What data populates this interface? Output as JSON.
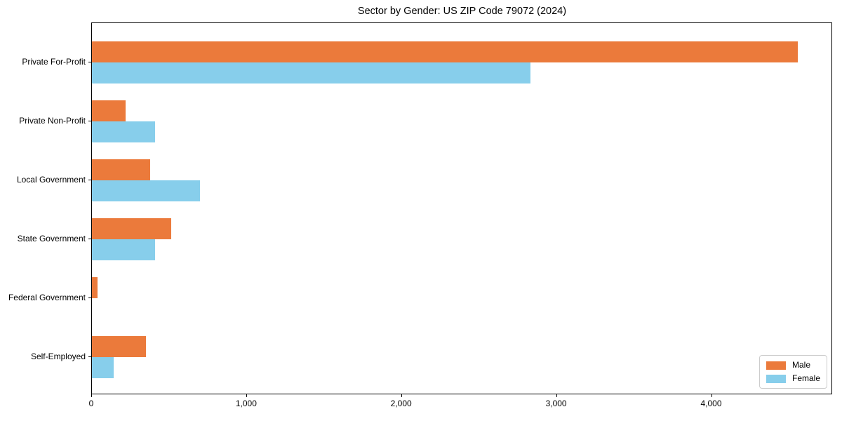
{
  "title": "Sector by Gender: US ZIP Code 79072 (2024)",
  "chart_data": {
    "type": "bar",
    "orientation": "horizontal",
    "title": "Sector by Gender: US ZIP Code 79072 (2024)",
    "categories": [
      "Private For-Profit",
      "Private Non-Profit",
      "Local Government",
      "State Government",
      "Federal Government",
      "Self-Employed"
    ],
    "series": [
      {
        "name": "Male",
        "color": "#EB7A3B",
        "values": [
          4553,
          215,
          374,
          510,
          35,
          347
        ]
      },
      {
        "name": "Female",
        "color": "#87CEEB",
        "values": [
          2831,
          406,
          696,
          406,
          0,
          141
        ]
      }
    ],
    "xlabel": "",
    "ylabel": "",
    "xlim": [
      0,
      4781
    ],
    "x_ticks": [
      {
        "value": 0,
        "label": "0"
      },
      {
        "value": 1000,
        "label": "1,000"
      },
      {
        "value": 2000,
        "label": "2,000"
      },
      {
        "value": 3000,
        "label": "3,000"
      },
      {
        "value": 4000,
        "label": "4,000"
      }
    ],
    "grid": false,
    "legend": {
      "position": "lower right",
      "entries": [
        "Male",
        "Female"
      ]
    }
  },
  "colors": {
    "male": "#EB7A3B",
    "female": "#87CEEB",
    "spine": "#000000",
    "legend_border": "#cccccc",
    "background": "#ffffff"
  }
}
